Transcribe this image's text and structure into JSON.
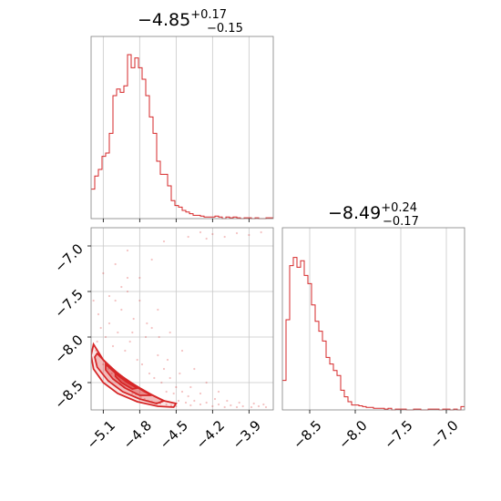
{
  "chart_data": [
    {
      "type": "histogram",
      "panel": "marginal-x",
      "title": {
        "median": "−4.85",
        "upper": "+0.17",
        "lower": "−0.15"
      },
      "color": "#d62728",
      "xlim": [
        -5.2,
        -3.7
      ],
      "grid": true,
      "x_grid": [
        -5.1,
        -4.8,
        -4.5,
        -4.2,
        -3.9
      ],
      "bin_start": -5.2,
      "bin_width": 0.03,
      "heights": [
        0.18,
        0.26,
        0.3,
        0.38,
        0.4,
        0.52,
        0.75,
        0.79,
        0.77,
        0.81,
        1.0,
        0.92,
        0.98,
        0.92,
        0.85,
        0.75,
        0.62,
        0.52,
        0.35,
        0.27,
        0.27,
        0.2,
        0.11,
        0.08,
        0.07,
        0.05,
        0.04,
        0.03,
        0.02,
        0.02,
        0.015,
        0.01,
        0.01,
        0.01,
        0.015,
        0.01,
        0.0,
        0.01,
        0.005,
        0.01,
        0.005,
        0.0,
        0.005,
        0.005,
        0.0,
        0.005,
        0.0,
        0.0,
        0.005,
        0.005
      ]
    },
    {
      "type": "histogram",
      "panel": "marginal-y",
      "title": {
        "median": "−8.49",
        "upper": "+0.24",
        "lower": "−0.17"
      },
      "color": "#d62728",
      "xlim": [
        -8.8,
        -6.8
      ],
      "grid": true,
      "x_ticks": [
        "−8.5",
        "−8.0",
        "−7.5",
        "−7.0"
      ],
      "x_tick_values": [
        -8.5,
        -8.0,
        -7.5,
        -7.0
      ],
      "bin_start": -8.8,
      "bin_width": 0.04,
      "heights": [
        0.18,
        0.55,
        0.88,
        0.93,
        0.87,
        0.91,
        0.82,
        0.77,
        0.64,
        0.54,
        0.48,
        0.42,
        0.32,
        0.28,
        0.24,
        0.21,
        0.12,
        0.08,
        0.05,
        0.03,
        0.03,
        0.025,
        0.02,
        0.015,
        0.015,
        0.01,
        0.01,
        0.01,
        0.005,
        0.01,
        0.0,
        0.005,
        0.005,
        0.005,
        0.0,
        0.0,
        0.005,
        0.005,
        0.0,
        0.0,
        0.005,
        0.005,
        0.005,
        0.0,
        0.005,
        0.005,
        0.0,
        0.005,
        0.0,
        0.02
      ]
    },
    {
      "type": "scatter",
      "panel": "joint",
      "color": "#d62728",
      "xlim": [
        -5.2,
        -3.7
      ],
      "ylim": [
        -8.8,
        -6.8
      ],
      "grid": true,
      "x_ticks": [
        "−5.1",
        "−4.8",
        "−4.5",
        "−4.2",
        "−3.9"
      ],
      "x_tick_values": [
        -5.1,
        -4.8,
        -4.5,
        -4.2,
        -3.9
      ],
      "y_ticks": [
        "−7.0",
        "−7.5",
        "−8.0",
        "−8.5"
      ],
      "y_tick_values": [
        -7.0,
        -7.5,
        -8.0,
        -8.5
      ],
      "contour_levels": [
        [
          [
            -5.18,
            -8.08
          ],
          [
            -5.1,
            -8.25
          ],
          [
            -4.98,
            -8.4
          ],
          [
            -4.85,
            -8.52
          ],
          [
            -4.72,
            -8.62
          ],
          [
            -4.6,
            -8.7
          ],
          [
            -4.5,
            -8.73
          ],
          [
            -4.52,
            -8.77
          ],
          [
            -4.65,
            -8.76
          ],
          [
            -4.82,
            -8.71
          ],
          [
            -4.98,
            -8.62
          ],
          [
            -5.1,
            -8.5
          ],
          [
            -5.18,
            -8.35
          ],
          [
            -5.2,
            -8.2
          ],
          [
            -5.18,
            -8.08
          ]
        ],
        [
          [
            -5.15,
            -8.18
          ],
          [
            -5.05,
            -8.32
          ],
          [
            -4.92,
            -8.46
          ],
          [
            -4.8,
            -8.56
          ],
          [
            -4.68,
            -8.65
          ],
          [
            -4.6,
            -8.7
          ],
          [
            -4.66,
            -8.73
          ],
          [
            -4.8,
            -8.68
          ],
          [
            -4.94,
            -8.6
          ],
          [
            -5.06,
            -8.48
          ],
          [
            -5.15,
            -8.33
          ],
          [
            -5.17,
            -8.22
          ],
          [
            -5.15,
            -8.18
          ]
        ],
        [
          [
            -5.08,
            -8.3
          ],
          [
            -4.98,
            -8.42
          ],
          [
            -4.86,
            -8.52
          ],
          [
            -4.76,
            -8.6
          ],
          [
            -4.7,
            -8.64
          ],
          [
            -4.8,
            -8.64
          ],
          [
            -4.92,
            -8.56
          ],
          [
            -5.02,
            -8.46
          ],
          [
            -5.08,
            -8.36
          ],
          [
            -5.08,
            -8.3
          ]
        ],
        [
          [
            -5.0,
            -8.4
          ],
          [
            -4.9,
            -8.5
          ],
          [
            -4.82,
            -8.56
          ],
          [
            -4.86,
            -8.57
          ],
          [
            -4.95,
            -8.5
          ],
          [
            -5.0,
            -8.43
          ],
          [
            -5.0,
            -8.4
          ]
        ]
      ],
      "points": [
        [
          -5.15,
          -8.05
        ],
        [
          -5.12,
          -7.9
        ],
        [
          -5.08,
          -8.0
        ],
        [
          -5.05,
          -7.85
        ],
        [
          -5.02,
          -8.1
        ],
        [
          -4.98,
          -7.95
        ],
        [
          -4.95,
          -7.7
        ],
        [
          -4.92,
          -8.15
        ],
        [
          -4.9,
          -7.5
        ],
        [
          -4.88,
          -8.05
        ],
        [
          -4.85,
          -7.8
        ],
        [
          -4.82,
          -8.25
        ],
        [
          -4.8,
          -7.6
        ],
        [
          -4.78,
          -8.3
        ],
        [
          -4.75,
          -8.0
        ],
        [
          -4.72,
          -8.4
        ],
        [
          -4.7,
          -7.9
        ],
        [
          -4.68,
          -8.45
        ],
        [
          -4.65,
          -8.2
        ],
        [
          -4.62,
          -8.5
        ],
        [
          -4.6,
          -8.35
        ],
        [
          -4.58,
          -8.6
        ],
        [
          -4.55,
          -8.45
        ],
        [
          -4.52,
          -8.62
        ],
        [
          -4.5,
          -8.55
        ],
        [
          -4.48,
          -8.7
        ],
        [
          -4.45,
          -8.6
        ],
        [
          -4.42,
          -8.72
        ],
        [
          -4.4,
          -8.65
        ],
        [
          -4.38,
          -8.75
        ],
        [
          -4.35,
          -8.7
        ],
        [
          -4.3,
          -8.74
        ],
        [
          -4.25,
          -8.72
        ],
        [
          -4.2,
          -8.76
        ],
        [
          -4.15,
          -8.74
        ],
        [
          -4.1,
          -8.77
        ],
        [
          -4.05,
          -8.75
        ],
        [
          -4.0,
          -8.77
        ],
        [
          -3.95,
          -8.76
        ],
        [
          -3.88,
          -8.77
        ],
        [
          -3.82,
          -8.76
        ],
        [
          -3.76,
          -8.77
        ],
        [
          -5.18,
          -7.6
        ],
        [
          -5.1,
          -7.3
        ],
        [
          -5.0,
          -7.2
        ],
        [
          -4.9,
          -7.05
        ],
        [
          -4.6,
          -6.95
        ],
        [
          -4.4,
          -6.9
        ],
        [
          -4.3,
          -6.85
        ],
        [
          -4.25,
          -6.92
        ],
        [
          -4.2,
          -6.87
        ],
        [
          -4.1,
          -6.9
        ],
        [
          -4.0,
          -6.86
        ],
        [
          -3.9,
          -6.88
        ],
        [
          -3.8,
          -6.85
        ],
        [
          -4.7,
          -7.15
        ],
        [
          -4.8,
          -7.35
        ],
        [
          -4.95,
          -7.45
        ],
        [
          -5.05,
          -7.55
        ],
        [
          -4.65,
          -7.7
        ],
        [
          -4.55,
          -7.95
        ],
        [
          -4.45,
          -8.15
        ],
        [
          -4.35,
          -8.35
        ],
        [
          -4.25,
          -8.5
        ],
        [
          -4.15,
          -8.6
        ],
        [
          -5.16,
          -8.15
        ],
        [
          -5.13,
          -8.2
        ],
        [
          -5.1,
          -8.3
        ],
        [
          -5.06,
          -8.35
        ],
        [
          -5.03,
          -8.4
        ],
        [
          -4.99,
          -8.45
        ],
        [
          -4.96,
          -8.52
        ],
        [
          -4.93,
          -8.55
        ],
        [
          -4.89,
          -8.58
        ],
        [
          -4.86,
          -8.62
        ],
        [
          -4.83,
          -8.63
        ],
        [
          -4.79,
          -8.66
        ],
        [
          -4.76,
          -8.68
        ],
        [
          -4.73,
          -8.7
        ],
        [
          -4.7,
          -8.71
        ],
        [
          -4.66,
          -8.72
        ],
        [
          -4.63,
          -8.73
        ],
        [
          -4.58,
          -8.74
        ],
        [
          -4.54,
          -8.75
        ],
        [
          -4.5,
          -8.76
        ],
        [
          -5.14,
          -7.75
        ],
        [
          -5.0,
          -7.6
        ],
        [
          -4.9,
          -7.35
        ],
        [
          -4.86,
          -7.95
        ],
        [
          -4.74,
          -7.85
        ],
        [
          -4.64,
          -8.0
        ],
        [
          -4.57,
          -8.25
        ],
        [
          -4.47,
          -8.4
        ],
        [
          -4.38,
          -8.55
        ],
        [
          -4.3,
          -8.62
        ],
        [
          -4.18,
          -8.68
        ],
        [
          -4.08,
          -8.7
        ],
        [
          -3.98,
          -8.72
        ],
        [
          -3.86,
          -8.73
        ],
        [
          -3.78,
          -8.74
        ]
      ]
    }
  ]
}
